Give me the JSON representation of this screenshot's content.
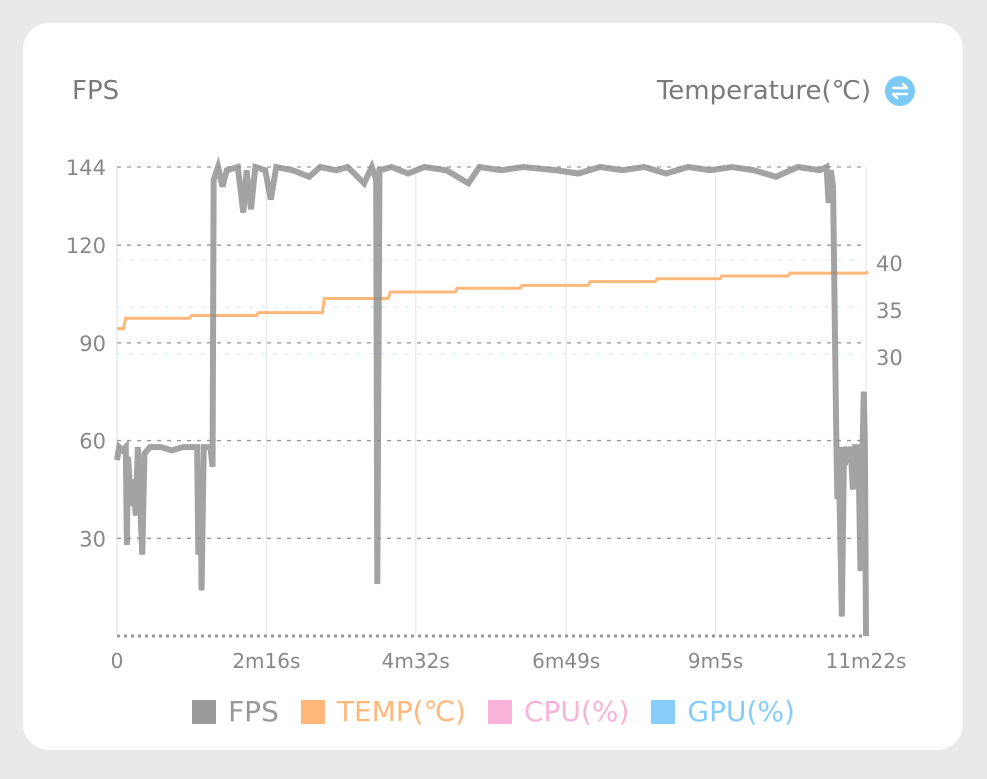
{
  "header": {
    "left_title": "FPS",
    "right_title": "Temperature(℃)",
    "swap_icon": "swap-axis-icon"
  },
  "colors": {
    "fps": "#8c8c8c",
    "temp": "#ffb87a",
    "cpu": "#f9b3d9",
    "gpu": "#86cdf9",
    "icon": "#7ccbf7"
  },
  "chart_data": {
    "type": "line",
    "title": "FPS",
    "y2label": "Temperature(℃)",
    "ylim": [
      0,
      144
    ],
    "yticks": [
      30,
      60,
      90,
      120,
      144
    ],
    "y2ticks": [
      30,
      35,
      40
    ],
    "y2lim_ref": {
      "30": 30,
      "40": 40
    },
    "xlim": [
      0,
      682
    ],
    "xticks": [
      0,
      136,
      272,
      409,
      545,
      682
    ],
    "xtick_labels": [
      "0",
      "2m16s",
      "4m32s",
      "6m49s",
      "9m5s",
      "11m22s"
    ],
    "legend": [
      "FPS",
      "TEMP(℃)",
      "CPU(%)",
      "GPU(%)"
    ],
    "legend_position": "bottom",
    "series": [
      {
        "name": "FPS",
        "points": [
          [
            0,
            54
          ],
          [
            2,
            58
          ],
          [
            5,
            57
          ],
          [
            8,
            58
          ],
          [
            9,
            28
          ],
          [
            10,
            55
          ],
          [
            13,
            40
          ],
          [
            15,
            48
          ],
          [
            17,
            37
          ],
          [
            19,
            58
          ],
          [
            23,
            25
          ],
          [
            25,
            56
          ],
          [
            30,
            58
          ],
          [
            40,
            58
          ],
          [
            50,
            57
          ],
          [
            60,
            58
          ],
          [
            70,
            58
          ],
          [
            73,
            58
          ],
          [
            74,
            25
          ],
          [
            76,
            50
          ],
          [
            77,
            14
          ],
          [
            79,
            58
          ],
          [
            85,
            58
          ],
          [
            87,
            52
          ],
          [
            88,
            140
          ],
          [
            92,
            144
          ],
          [
            96,
            138
          ],
          [
            100,
            143
          ],
          [
            110,
            144
          ],
          [
            115,
            130
          ],
          [
            118,
            143
          ],
          [
            122,
            131
          ],
          [
            126,
            144
          ],
          [
            135,
            143
          ],
          [
            140,
            134
          ],
          [
            145,
            144
          ],
          [
            160,
            143
          ],
          [
            175,
            141
          ],
          [
            185,
            144
          ],
          [
            200,
            143
          ],
          [
            210,
            144
          ],
          [
            225,
            139
          ],
          [
            232,
            144
          ],
          [
            236,
            140
          ],
          [
            237,
            16
          ],
          [
            239,
            143
          ],
          [
            250,
            144
          ],
          [
            265,
            142
          ],
          [
            280,
            144
          ],
          [
            300,
            143
          ],
          [
            320,
            139
          ],
          [
            330,
            144
          ],
          [
            350,
            143
          ],
          [
            370,
            144
          ],
          [
            400,
            143
          ],
          [
            420,
            142
          ],
          [
            440,
            144
          ],
          [
            460,
            143
          ],
          [
            480,
            144
          ],
          [
            500,
            142
          ],
          [
            520,
            144
          ],
          [
            540,
            143
          ],
          [
            560,
            144
          ],
          [
            580,
            143
          ],
          [
            600,
            141
          ],
          [
            620,
            144
          ],
          [
            640,
            143
          ],
          [
            646,
            144
          ],
          [
            648,
            133
          ],
          [
            650,
            143
          ],
          [
            652,
            138
          ],
          [
            655,
            60
          ],
          [
            656,
            42
          ],
          [
            657,
            58
          ],
          [
            660,
            6
          ],
          [
            662,
            58
          ],
          [
            665,
            55
          ],
          [
            668,
            58
          ],
          [
            670,
            45
          ],
          [
            672,
            58
          ],
          [
            675,
            58
          ],
          [
            677,
            20
          ],
          [
            679,
            60
          ],
          [
            680,
            75
          ],
          [
            681,
            58
          ],
          [
            682,
            0
          ]
        ]
      },
      {
        "name": "TEMP(℃)",
        "axis": "right",
        "points": [
          [
            0,
            32.7
          ],
          [
            6,
            33.8
          ],
          [
            66,
            34.1
          ],
          [
            127,
            34.4
          ],
          [
            187,
            35.9
          ],
          [
            247,
            36.6
          ],
          [
            308,
            37.0
          ],
          [
            367,
            37.3
          ],
          [
            429,
            37.7
          ],
          [
            490,
            38.0
          ],
          [
            549,
            38.3
          ],
          [
            611,
            38.6
          ],
          [
            682,
            38.7
          ]
        ]
      }
    ]
  }
}
